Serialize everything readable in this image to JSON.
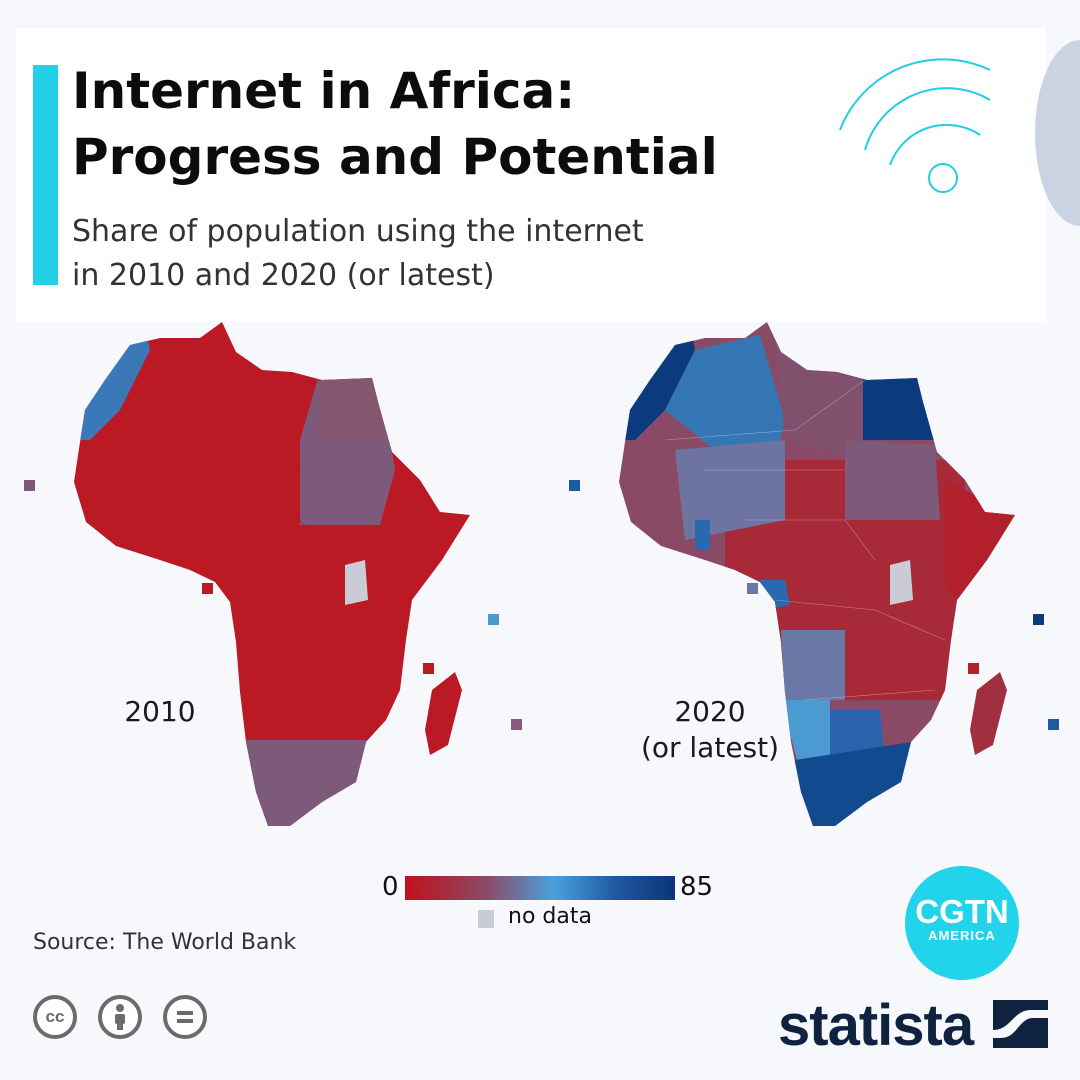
{
  "header": {
    "title_line1": "Internet in Africa:",
    "title_line2": "Progress and Potential",
    "subtitle_line1": "Share of population using the internet",
    "subtitle_line2": "in 2010 and 2020 (or latest)",
    "icon": "wifi-icon"
  },
  "maps": [
    {
      "label": "2010",
      "sublabel": "",
      "dominant": "low (red)",
      "regions": {
        "morocco": "#3a78b8",
        "egypt_sudan": "#7e5570",
        "south_africa": "#7e5a7a",
        "rest": "#bb1a24",
        "uganda": "no data"
      }
    },
    {
      "label": "2020",
      "sublabel": "(or latest)",
      "dominant": "mixed",
      "regions": {
        "morocco": "#0c3a7e",
        "algeria": "#3576b4",
        "egypt": "#0c3a7e",
        "libya": "#80506c",
        "west_africa": "#8a5070",
        "ghana": "#2a68b0",
        "south_africa": "#124a90",
        "namibia": "#4b9ad2",
        "botswana": "#2a62ac",
        "central_africa": "#a82a38",
        "uganda": "no data"
      }
    }
  ],
  "legend": {
    "min": "0",
    "max": "85",
    "no_data_label": "no data",
    "colors": [
      "#c0101c",
      "#8a4a66",
      "#4aa0dc",
      "#1f5aa0",
      "#0c3478"
    ],
    "no_data_color": "#c9ccd4"
  },
  "footer": {
    "source": "Source: The World Bank",
    "license_icons": [
      "cc-icon",
      "attribution-icon",
      "no-derivatives-icon"
    ],
    "cc_text": "cc",
    "cgtn_logo": "CGTN",
    "cgtn_sub": "AMERICA",
    "statista_logo": "statista"
  }
}
